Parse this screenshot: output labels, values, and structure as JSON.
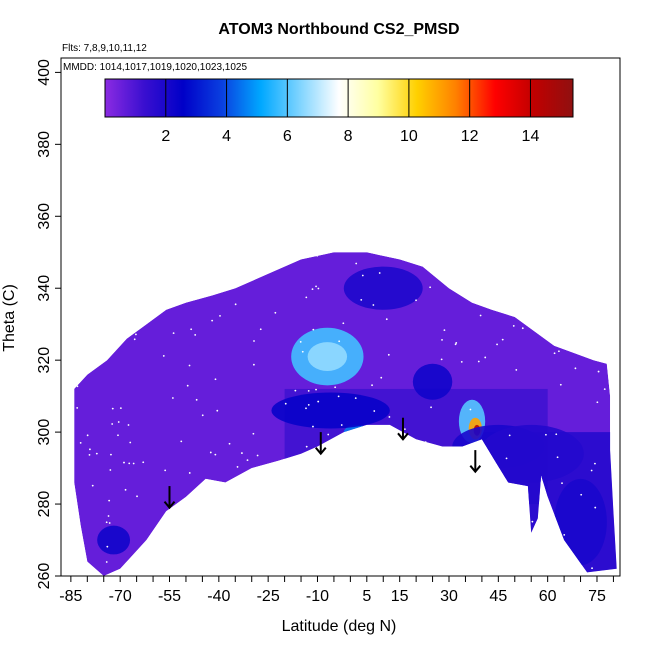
{
  "chart_data": {
    "type": "heatmap",
    "title": "ATOM3 Northbound CS2_PMSD",
    "note_flights": "Flts: 7,8,9,10,11,12",
    "note_dates": "MMDD: 1014,1017,1019,1020,1023,1025",
    "xlabel": "Latitude (deg N)",
    "ylabel": "Theta (C)",
    "xlim": [
      -88,
      82
    ],
    "ylim": [
      260,
      404
    ],
    "x_tick_labels": [
      "-85",
      "-70",
      "-55",
      "-40",
      "-25",
      "-10",
      "5",
      "15",
      "30",
      "45",
      "60",
      "75"
    ],
    "x_tick_values": [
      -85,
      -70,
      -55,
      -40,
      -25,
      -10,
      5,
      15,
      30,
      45,
      60,
      75
    ],
    "x_minor_ticks": [
      -85,
      -80,
      -75,
      -70,
      -65,
      -60,
      -55,
      -50,
      -45,
      -40,
      -35,
      -30,
      -25,
      -20,
      -15,
      -10,
      -5,
      0,
      5,
      10,
      15,
      20,
      25,
      30,
      35,
      40,
      45,
      50,
      55,
      60,
      65,
      70,
      75,
      80
    ],
    "y_tick_labels": [
      "260",
      "280",
      "300",
      "320",
      "340",
      "360",
      "380",
      "400"
    ],
    "y_tick_values": [
      260,
      280,
      300,
      320,
      340,
      360,
      380,
      400
    ],
    "colorbar": {
      "range": [
        0,
        15.4
      ],
      "tick_values": [
        2,
        4,
        6,
        8,
        10,
        12,
        14
      ],
      "tick_labels": [
        "2",
        "4",
        "6",
        "8",
        "10",
        "12",
        "14"
      ],
      "colors": [
        "#8b2be2",
        "#3a0fd0",
        "#0000c8",
        "#0a40e0",
        "#00a8ff",
        "#7fd4ff",
        "#ffffff",
        "#ffffa0",
        "#ffd000",
        "#ff8000",
        "#ff0000",
        "#c00000",
        "#901010"
      ]
    },
    "data_envelope": [
      [
        -84,
        312
      ],
      [
        -80,
        316
      ],
      [
        -74,
        320
      ],
      [
        -68,
        326
      ],
      [
        -62,
        330
      ],
      [
        -56,
        334
      ],
      [
        -50,
        336
      ],
      [
        -42,
        338
      ],
      [
        -35,
        340
      ],
      [
        -25,
        344
      ],
      [
        -15,
        348
      ],
      [
        -5,
        350
      ],
      [
        5,
        350
      ],
      [
        15,
        348
      ],
      [
        22,
        346
      ],
      [
        30,
        340
      ],
      [
        37,
        336
      ],
      [
        43,
        334
      ],
      [
        50,
        332
      ],
      [
        56,
        328
      ],
      [
        62,
        324
      ],
      [
        68,
        322
      ],
      [
        74,
        320
      ],
      [
        78,
        319
      ],
      [
        79,
        310
      ],
      [
        79,
        295
      ],
      [
        80,
        278
      ],
      [
        81,
        262
      ],
      [
        72,
        261
      ],
      [
        65,
        270
      ],
      [
        60,
        282
      ],
      [
        58,
        288
      ],
      [
        57,
        276
      ],
      [
        55,
        272
      ],
      [
        54,
        285
      ],
      [
        48,
        286
      ],
      [
        44,
        292
      ],
      [
        40,
        298
      ],
      [
        34,
        296
      ],
      [
        28,
        296
      ],
      [
        20,
        298
      ],
      [
        16,
        300
      ],
      [
        12,
        302
      ],
      [
        5,
        302
      ],
      [
        -2,
        300
      ],
      [
        -10,
        296
      ],
      [
        -15,
        294
      ],
      [
        -22,
        292
      ],
      [
        -30,
        290
      ],
      [
        -38,
        286
      ],
      [
        -44,
        287
      ],
      [
        -50,
        282
      ],
      [
        -56,
        278
      ],
      [
        -62,
        270
      ],
      [
        -70,
        262
      ],
      [
        -75,
        260
      ],
      [
        -80,
        264
      ],
      [
        -82,
        274
      ],
      [
        -84,
        286
      ]
    ],
    "field_blobs": [
      {
        "x": -7,
        "y": 321,
        "rx": 11,
        "ry": 8,
        "value": 5.8
      },
      {
        "x": -7,
        "y": 321,
        "rx": 6,
        "ry": 4,
        "value": 6.6
      },
      {
        "x": 37,
        "y": 303,
        "rx": 4,
        "ry": 6,
        "value": 6.0
      },
      {
        "x": 38,
        "y": 301,
        "rx": 2,
        "ry": 3,
        "value": 11.0
      },
      {
        "x": 38.5,
        "y": 300.5,
        "rx": 1,
        "ry": 1.5,
        "value": 14.5
      },
      {
        "x": 2,
        "y": 300,
        "rx": 4,
        "ry": 2,
        "value": 4.6
      },
      {
        "x": -6,
        "y": 306,
        "rx": 18,
        "ry": 5,
        "value": 2.4
      },
      {
        "x": 45,
        "y": 296,
        "rx": 14,
        "ry": 6,
        "value": 2.0
      },
      {
        "x": 55,
        "y": 294,
        "rx": 16,
        "ry": 8,
        "value": 1.8
      },
      {
        "x": 70,
        "y": 275,
        "rx": 8,
        "ry": 12,
        "value": 2.0
      },
      {
        "x": -72,
        "y": 270,
        "rx": 5,
        "ry": 4,
        "value": 2.2
      },
      {
        "x": 10,
        "y": 340,
        "rx": 12,
        "ry": 6,
        "value": 1.9
      },
      {
        "x": 25,
        "y": 314,
        "rx": 6,
        "ry": 5,
        "value": 2.2
      }
    ],
    "arrows": [
      {
        "x": -55,
        "y_top": 285,
        "y_bottom": 279
      },
      {
        "x": -9,
        "y_top": 300,
        "y_bottom": 294
      },
      {
        "x": 16,
        "y_top": 304,
        "y_bottom": 298
      },
      {
        "x": 38,
        "y_top": 295,
        "y_bottom": 289
      }
    ],
    "grid": false,
    "legend": "top"
  }
}
